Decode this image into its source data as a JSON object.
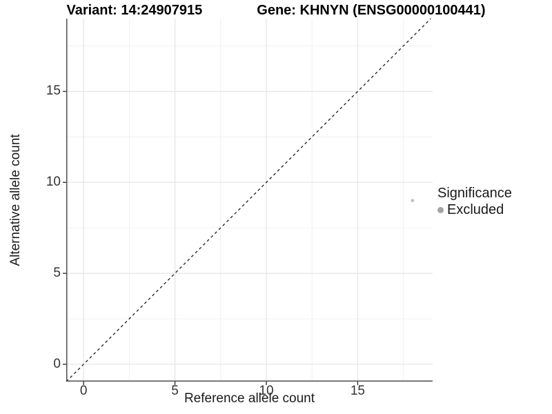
{
  "figure": {
    "title_left": "Variant: 14:24907915",
    "title_right": "Gene: KHNYN (ENSG00000100441)"
  },
  "chart_data": {
    "type": "scatter",
    "title": "Variant: 14:24907915   Gene: KHNYN (ENSG00000100441)",
    "xlabel": "Reference allele count",
    "ylabel": "Alternative allele count",
    "xlim": [
      -0.95,
      19.1
    ],
    "ylim": [
      -0.95,
      19.0
    ],
    "x_ticks": [
      0,
      5,
      10,
      15
    ],
    "y_ticks": [
      0,
      5,
      10,
      15
    ],
    "x_minor_ticks": [
      2.5,
      7.5,
      12.5,
      17.5
    ],
    "y_minor_ticks": [
      2.5,
      7.5,
      12.5,
      17.5
    ],
    "grid": true,
    "legend_position": "right",
    "series": [
      {
        "name": "Excluded",
        "points": [
          {
            "x": 18,
            "y": 9
          }
        ],
        "color": "#c0c0c0",
        "point_radius": 2.4
      }
    ],
    "reference_line": {
      "kind": "identity",
      "style": "dashed",
      "color": "#1a1a1a",
      "from": -0.95,
      "to": 19.0
    },
    "legend": {
      "title": "Significance",
      "items": [
        {
          "label": "Excluded",
          "color": "#a3a3a3"
        }
      ]
    },
    "colors": {
      "panel_background": "#ffffff",
      "major_grid": "#e4e4e4",
      "minor_grid": "#efefef",
      "axis_line": "#4d4d4d",
      "tick_mark": "#333333"
    }
  }
}
